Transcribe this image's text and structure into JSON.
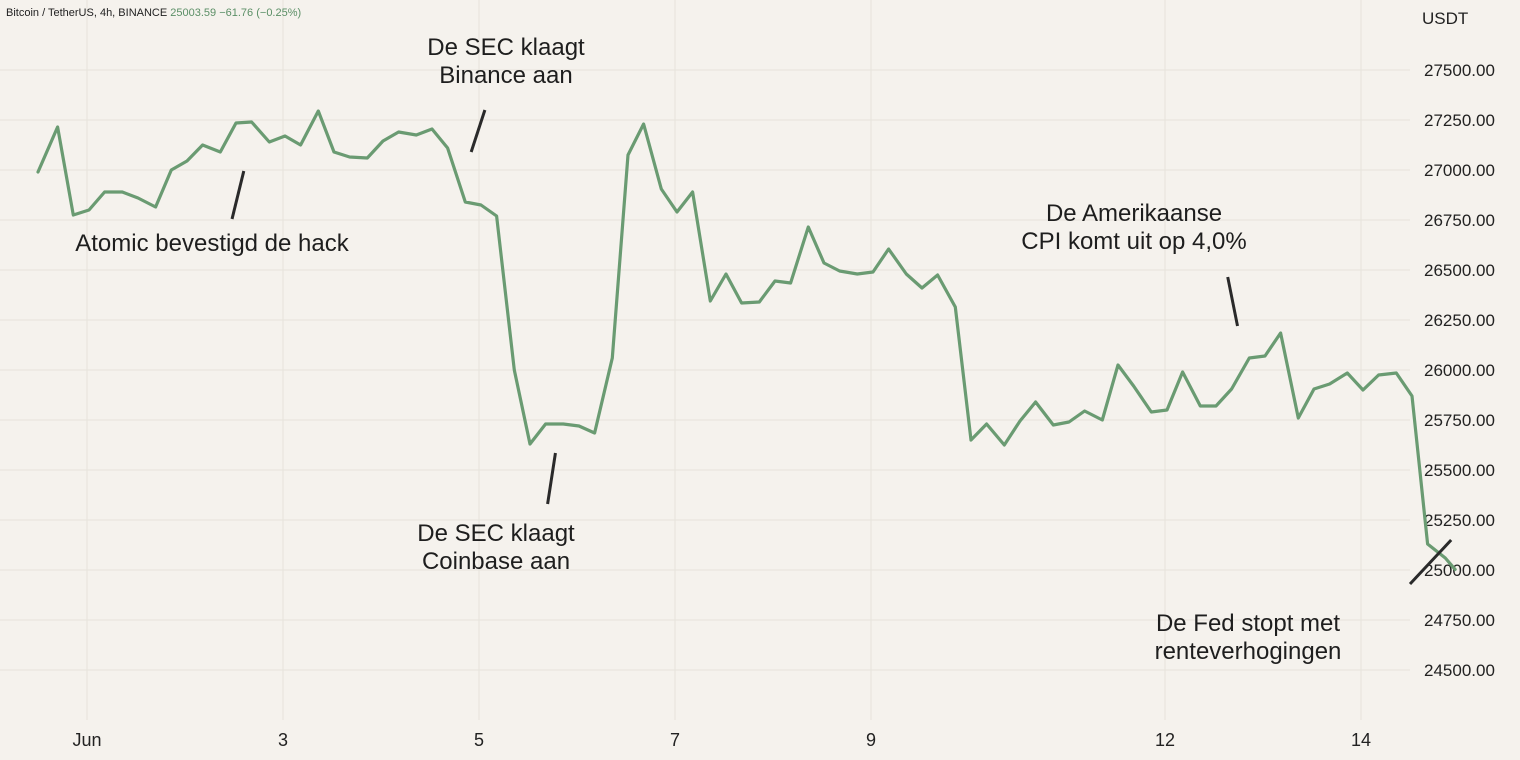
{
  "header": {
    "symbol": "Bitcoin / TetherUS, 4h, BINANCE",
    "last": "25003.59",
    "change": "−61.76 (−0.25%)"
  },
  "colors": {
    "line": "#6a9b72",
    "background": "#f5f2ed",
    "grid": "#e7e3dc",
    "annotation_pointer": "#2a2a2a"
  },
  "chart_data": {
    "type": "line",
    "title": "",
    "xlabel": "",
    "ylabel": "USDT",
    "unit": "USDT",
    "ylim": [
      24400,
      27900
    ],
    "grid": true,
    "x_ticks": [
      {
        "label": "Jun",
        "x": 0.25
      },
      {
        "label": "3",
        "x": 1.25
      },
      {
        "label": "5",
        "x": 2.25
      },
      {
        "label": "7",
        "x": 3.25
      },
      {
        "label": "9",
        "x": 4.25
      },
      {
        "label": "12",
        "x": 5.75
      },
      {
        "label": "14",
        "x": 6.75
      }
    ],
    "y_ticks": [
      {
        "label": "27500.00",
        "value": 27500
      },
      {
        "label": "27250.00",
        "value": 27250
      },
      {
        "label": "27000.00",
        "value": 27000
      },
      {
        "label": "26750.00",
        "value": 26750
      },
      {
        "label": "26500.00",
        "value": 26500
      },
      {
        "label": "26250.00",
        "value": 26250
      },
      {
        "label": "26000.00",
        "value": 26000
      },
      {
        "label": "25750.00",
        "value": 25750
      },
      {
        "label": "25500.00",
        "value": 25500
      },
      {
        "label": "25250.00",
        "value": 25250
      },
      {
        "label": "25000.00",
        "value": 25000
      },
      {
        "label": "24750.00",
        "value": 24750
      },
      {
        "label": "24500.00",
        "value": 24500
      }
    ],
    "series": [
      {
        "points": [
          [
            0.0,
            26990
          ],
          [
            0.1,
            27215
          ],
          [
            0.18,
            26775
          ],
          [
            0.26,
            26800
          ],
          [
            0.34,
            26890
          ],
          [
            0.43,
            26890
          ],
          [
            0.51,
            26860
          ],
          [
            0.6,
            26815
          ],
          [
            0.68,
            27000
          ],
          [
            0.76,
            27045
          ],
          [
            0.84,
            27125
          ],
          [
            0.93,
            27090
          ],
          [
            1.01,
            27235
          ],
          [
            1.09,
            27240
          ],
          [
            1.18,
            27140
          ],
          [
            1.26,
            27170
          ],
          [
            1.34,
            27125
          ],
          [
            1.43,
            27295
          ],
          [
            1.51,
            27090
          ],
          [
            1.59,
            27065
          ],
          [
            1.68,
            27060
          ],
          [
            1.76,
            27145
          ],
          [
            1.84,
            27190
          ],
          [
            1.93,
            27175
          ],
          [
            2.01,
            27205
          ],
          [
            2.09,
            27110
          ],
          [
            2.18,
            26840
          ],
          [
            2.26,
            26825
          ],
          [
            2.34,
            26770
          ],
          [
            2.43,
            26000
          ],
          [
            2.51,
            25630
          ],
          [
            2.59,
            25730
          ],
          [
            2.68,
            25730
          ],
          [
            2.76,
            25720
          ],
          [
            2.84,
            25685
          ],
          [
            2.93,
            26060
          ],
          [
            3.01,
            27075
          ],
          [
            3.09,
            27230
          ],
          [
            3.18,
            26905
          ],
          [
            3.26,
            26790
          ],
          [
            3.34,
            26890
          ],
          [
            3.43,
            26345
          ],
          [
            3.51,
            26480
          ],
          [
            3.59,
            26335
          ],
          [
            3.68,
            26340
          ],
          [
            3.76,
            26445
          ],
          [
            3.84,
            26435
          ],
          [
            3.93,
            26715
          ],
          [
            4.01,
            26535
          ],
          [
            4.09,
            26495
          ],
          [
            4.18,
            26480
          ],
          [
            4.26,
            26490
          ],
          [
            4.34,
            26605
          ],
          [
            4.43,
            26480
          ],
          [
            4.51,
            26410
          ],
          [
            4.59,
            26475
          ],
          [
            4.68,
            26315
          ],
          [
            4.76,
            25650
          ],
          [
            4.84,
            25730
          ],
          [
            4.93,
            25625
          ],
          [
            5.01,
            25745
          ],
          [
            5.09,
            25840
          ],
          [
            5.18,
            25725
          ],
          [
            5.26,
            25740
          ],
          [
            5.34,
            25795
          ],
          [
            5.43,
            25750
          ],
          [
            5.51,
            26025
          ],
          [
            5.59,
            25920
          ],
          [
            5.68,
            25790
          ],
          [
            5.76,
            25800
          ],
          [
            5.84,
            25990
          ],
          [
            5.93,
            25820
          ],
          [
            6.01,
            25820
          ],
          [
            6.09,
            25905
          ],
          [
            6.18,
            26060
          ],
          [
            6.26,
            26070
          ],
          [
            6.34,
            26185
          ],
          [
            6.43,
            25760
          ],
          [
            6.51,
            25905
          ],
          [
            6.59,
            25930
          ],
          [
            6.68,
            25985
          ],
          [
            6.76,
            25900
          ],
          [
            6.84,
            25975
          ],
          [
            6.93,
            25985
          ],
          [
            7.01,
            25870
          ],
          [
            7.09,
            25130
          ],
          [
            7.18,
            25060
          ],
          [
            7.23,
            25003
          ]
        ]
      }
    ],
    "annotations": [
      {
        "lines": [
          "Atomic bevestigd de hack"
        ],
        "x": 1.05,
        "y": 26995,
        "tail_x": 0.99,
        "tail_y": 26755
      },
      {
        "lines": [
          "De SEC klaagt",
          "Binance aan"
        ],
        "x": 2.28,
        "y": 27300,
        "tail_x": 2.21,
        "tail_y": 27090
      },
      {
        "lines": [
          "De SEC klaagt",
          "Coinbase aan"
        ],
        "x": 2.64,
        "y": 25585,
        "tail_x": 2.6,
        "tail_y": 25330
      },
      {
        "lines": [
          "De Amerikaanse",
          "CPI komt uit op 4,0%"
        ],
        "x": 6.07,
        "y": 26465,
        "tail_x": 6.12,
        "tail_y": 26220
      },
      {
        "lines": [
          "De Fed stopt met",
          "renteverhogingen"
        ],
        "x": 7.0,
        "y": 24930,
        "tail_x": 7.21,
        "tail_y": 25150
      }
    ]
  }
}
